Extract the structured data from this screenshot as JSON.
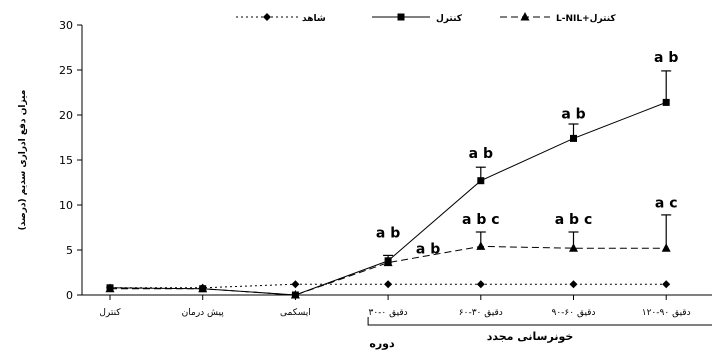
{
  "chart_data": {
    "type": "line",
    "categories": [
      "کنترل",
      "پیش درمان",
      "ایسکمی",
      "دقیق ۰-۳۰",
      "دقیق ۳۰-۶۰",
      "دقیق ۶۰-۹۰",
      "دقیق ۹۰-۱۲۰"
    ],
    "ylabel": "میزان دفع ادراری سدیم (درصد)",
    "xlabel": "دوره",
    "group_label": "خونرسانی مجدد",
    "ylim": [
      0,
      30
    ],
    "yticks": [
      0,
      5,
      10,
      15,
      20,
      25,
      30
    ],
    "legend_position": "top",
    "series": [
      {
        "name": "شاهد",
        "marker": "diamond",
        "line": "dotted",
        "values": [
          0.8,
          0.8,
          1.2,
          1.2,
          1.2,
          1.2,
          1.2
        ]
      },
      {
        "name": "کنترل",
        "marker": "square",
        "line": "solid",
        "values": [
          0.8,
          0.7,
          0.0,
          3.8,
          12.7,
          17.4,
          21.4
        ],
        "error": [
          0,
          0,
          0,
          0.6,
          1.5,
          1.6,
          3.5
        ]
      },
      {
        "name": "L-NIL+کنترل",
        "marker": "triangle",
        "line": "dashed",
        "values": [
          0.7,
          0.7,
          0.0,
          3.6,
          5.4,
          5.2,
          5.2
        ],
        "error": [
          0,
          0,
          0,
          0,
          1.6,
          1.8,
          3.7
        ]
      }
    ],
    "annotations": [
      {
        "category_index": 3,
        "y": 6.4,
        "text": "a b"
      },
      {
        "category_index": 3,
        "y": 4.6,
        "text": "a b",
        "offset": "right"
      },
      {
        "category_index": 4,
        "y": 15.2,
        "text": "a b"
      },
      {
        "category_index": 4,
        "y": 7.9,
        "text": "a b c"
      },
      {
        "category_index": 5,
        "y": 19.6,
        "text": "a b"
      },
      {
        "category_index": 5,
        "y": 7.9,
        "text": "a b c"
      },
      {
        "category_index": 6,
        "y": 25.9,
        "text": "a b"
      },
      {
        "category_index": 6,
        "y": 9.7,
        "text": "a  c"
      }
    ]
  }
}
